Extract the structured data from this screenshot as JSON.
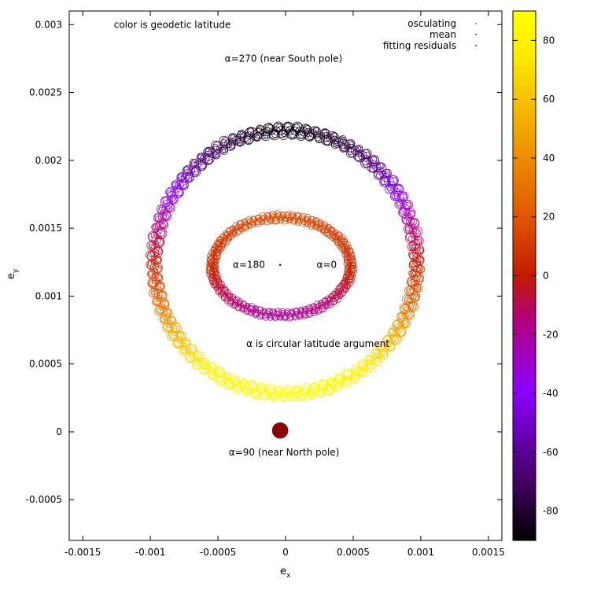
{
  "chart_data": {
    "type": "scatter",
    "title": "",
    "xlabel": "e_x",
    "xlabel_main": "e",
    "xlabel_sub": "x",
    "ylabel_main": "e",
    "ylabel_sub": "y",
    "xlim": [
      -0.0016,
      0.0016
    ],
    "ylim": [
      -0.0008,
      0.0031
    ],
    "x_ticks": [
      -0.0015,
      -0.001,
      -0.0005,
      0,
      0.0005,
      0.001,
      0.0015
    ],
    "x_tick_labels": [
      "-0.0015",
      "-0.001",
      "-0.0005",
      "0",
      "0.0005",
      "0.001",
      "0.0015"
    ],
    "y_ticks": [
      -0.0005,
      0,
      0.0005,
      0.001,
      0.0015,
      0.002,
      0.0025,
      0.003
    ],
    "y_tick_labels": [
      "-0.0005",
      "0",
      "0.0005",
      "0.001",
      "0.0015",
      "0.002",
      "0.0025",
      "0.003"
    ],
    "grid": false,
    "legend_position": "top-right",
    "legend": [
      {
        "label": "osculating",
        "color": "#9b59b6"
      },
      {
        "label": "mean",
        "color": "#7b2fbf"
      },
      {
        "label": "fitting residuals",
        "color": "#cc0000"
      }
    ],
    "colorbar": {
      "range": [
        -90,
        90
      ],
      "ticks": [
        80,
        60,
        40,
        20,
        0,
        -20,
        -40,
        -60,
        -80
      ],
      "tick_labels": [
        "80",
        "60",
        "40",
        "20",
        "0",
        "-20",
        "-40",
        "-60",
        "-80"
      ],
      "palette": [
        "#000000",
        "#4a006e",
        "#8b00ff",
        "#b5007a",
        "#c31a00",
        "#e35a00",
        "#f3a800",
        "#fdec00",
        "#ffff00"
      ]
    },
    "series": [
      {
        "name": "osculating",
        "shape": "ring",
        "center": [
          0,
          0.00125
        ],
        "radius": 0.00097,
        "thickness": 4e-05,
        "latitude_note": "top of ring near South pole, bottom near North pole"
      },
      {
        "name": "mean",
        "shape": "ring",
        "center": [
          -3e-05,
          0.00122
        ],
        "radius_x": 0.00051,
        "radius_y": 0.00036,
        "thickness": 3e-05
      },
      {
        "name": "fitting residuals",
        "shape": "blob",
        "center": [
          -4e-05,
          1e-05
        ],
        "radius": 6e-05
      }
    ],
    "annotations": [
      {
        "text": "color is geodetic latitude",
        "x": -0.00127,
        "y": 0.003
      },
      {
        "text": "α=270 (near South pole)",
        "x": -0.00045,
        "y": 0.00275
      },
      {
        "text": "α=180",
        "x": -0.00039,
        "y": 0.00123
      },
      {
        "text": "α=0",
        "x": 0.00023,
        "y": 0.00123
      },
      {
        "text": "α is circular latitude argument",
        "x": -0.00029,
        "y": 0.00065
      },
      {
        "text": "α=90 (near North pole)",
        "x": -0.00042,
        "y": -0.00015
      }
    ]
  }
}
